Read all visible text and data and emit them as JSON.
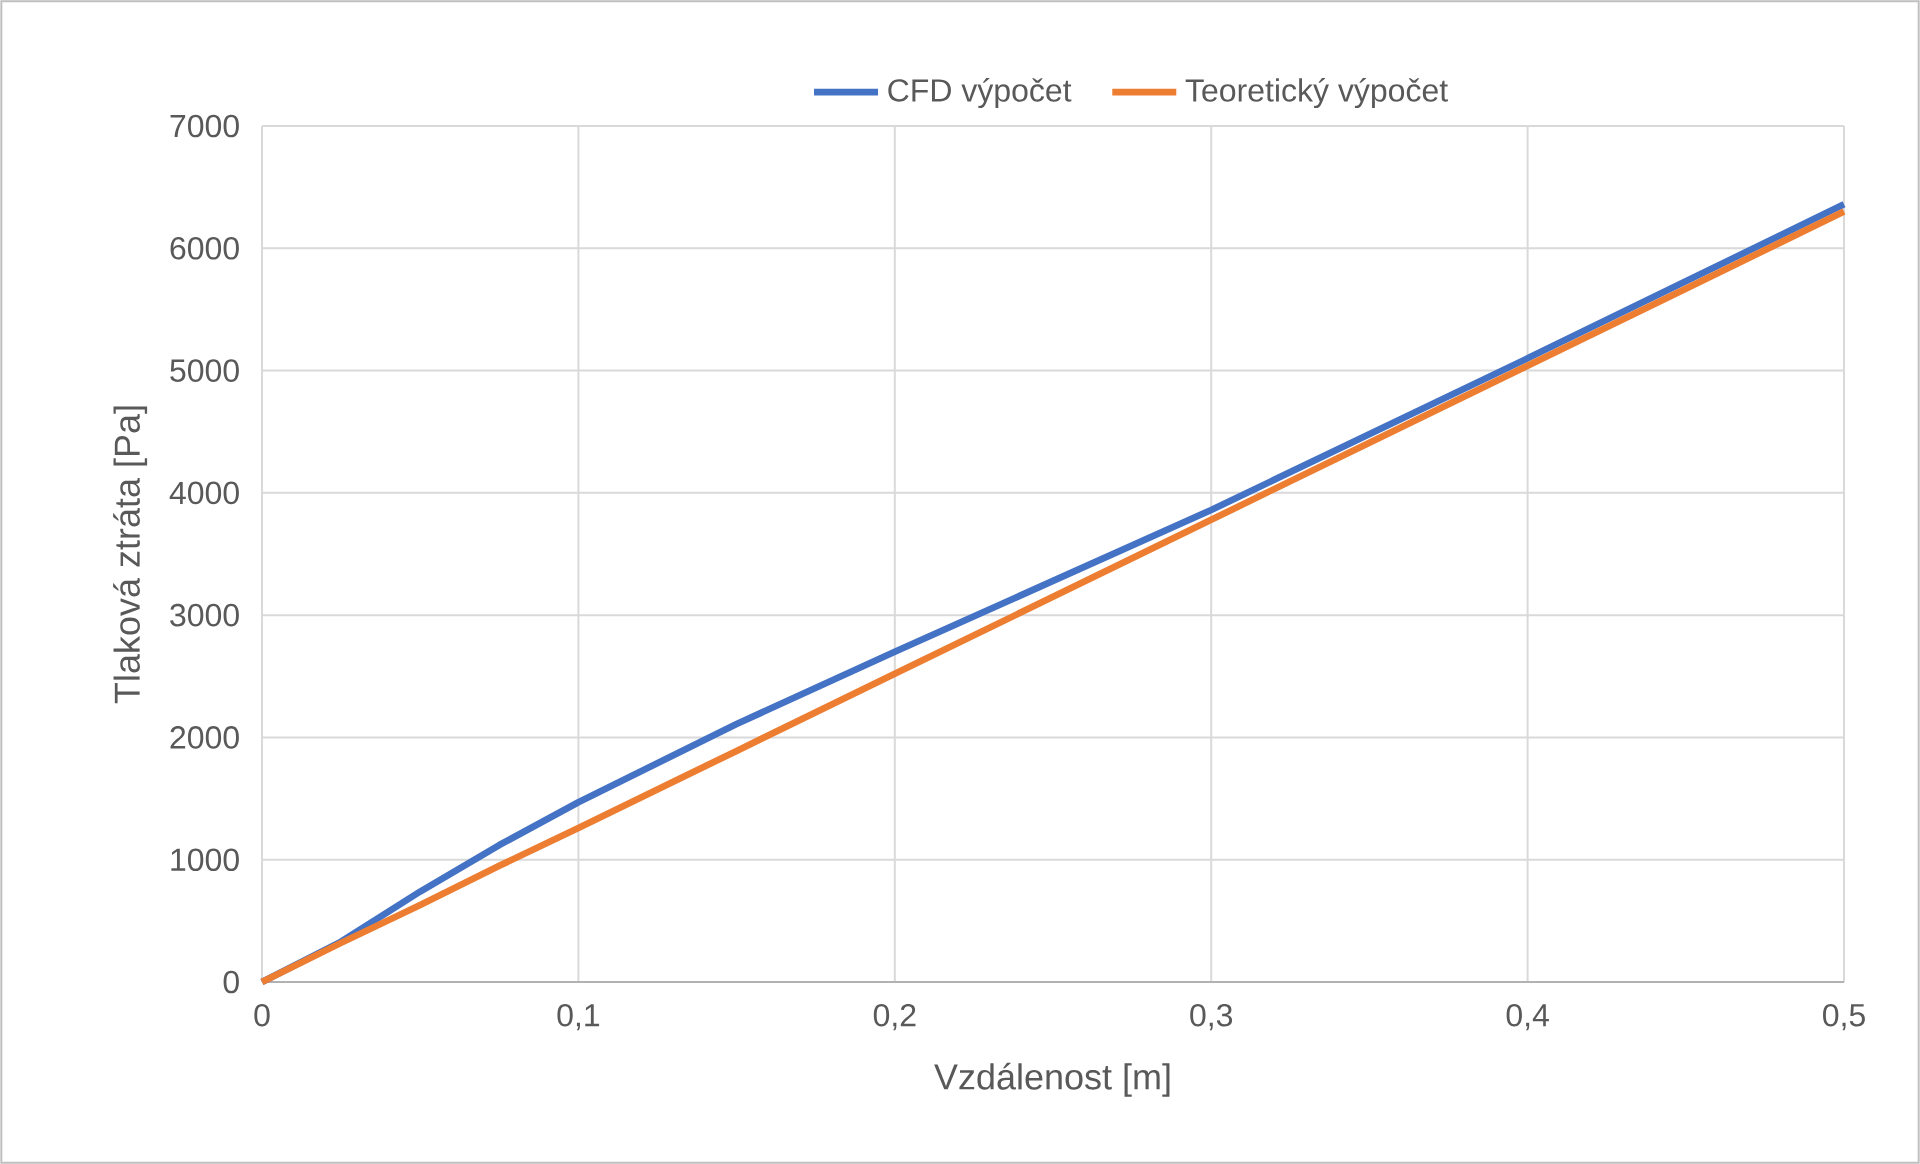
{
  "chart_data": {
    "type": "line",
    "xlabel": "Vzdálenost [m]",
    "ylabel": "Tlaková ztráta [Pa]",
    "x": [
      0,
      0.025,
      0.05,
      0.075,
      0.1,
      0.15,
      0.2,
      0.25,
      0.3,
      0.35,
      0.4,
      0.45,
      0.5
    ],
    "series": [
      {
        "name": "CFD výpočet",
        "color": "#4472c4",
        "values": [
          0,
          330,
          740,
          1120,
          1470,
          2110,
          2700,
          3280,
          3860,
          4480,
          5100,
          5730,
          6360
        ]
      },
      {
        "name": "Teoretický výpočet",
        "color": "#ed7d31",
        "values": [
          0,
          320,
          630,
          950,
          1260,
          1890,
          2520,
          3150,
          3780,
          4410,
          5040,
          5670,
          6300
        ]
      }
    ],
    "xlim": [
      0,
      0.5
    ],
    "xticks": [
      {
        "value": 0,
        "label": "0"
      },
      {
        "value": 0.1,
        "label": "0,1"
      },
      {
        "value": 0.2,
        "label": "0,2"
      },
      {
        "value": 0.3,
        "label": "0,3"
      },
      {
        "value": 0.4,
        "label": "0,4"
      },
      {
        "value": 0.5,
        "label": "0,5"
      }
    ],
    "ylim": [
      0,
      7000
    ],
    "yticks": [
      0,
      1000,
      2000,
      3000,
      4000,
      5000,
      6000,
      7000
    ],
    "grid": true,
    "legend": "top",
    "marker": "none",
    "line_style": "solid"
  }
}
